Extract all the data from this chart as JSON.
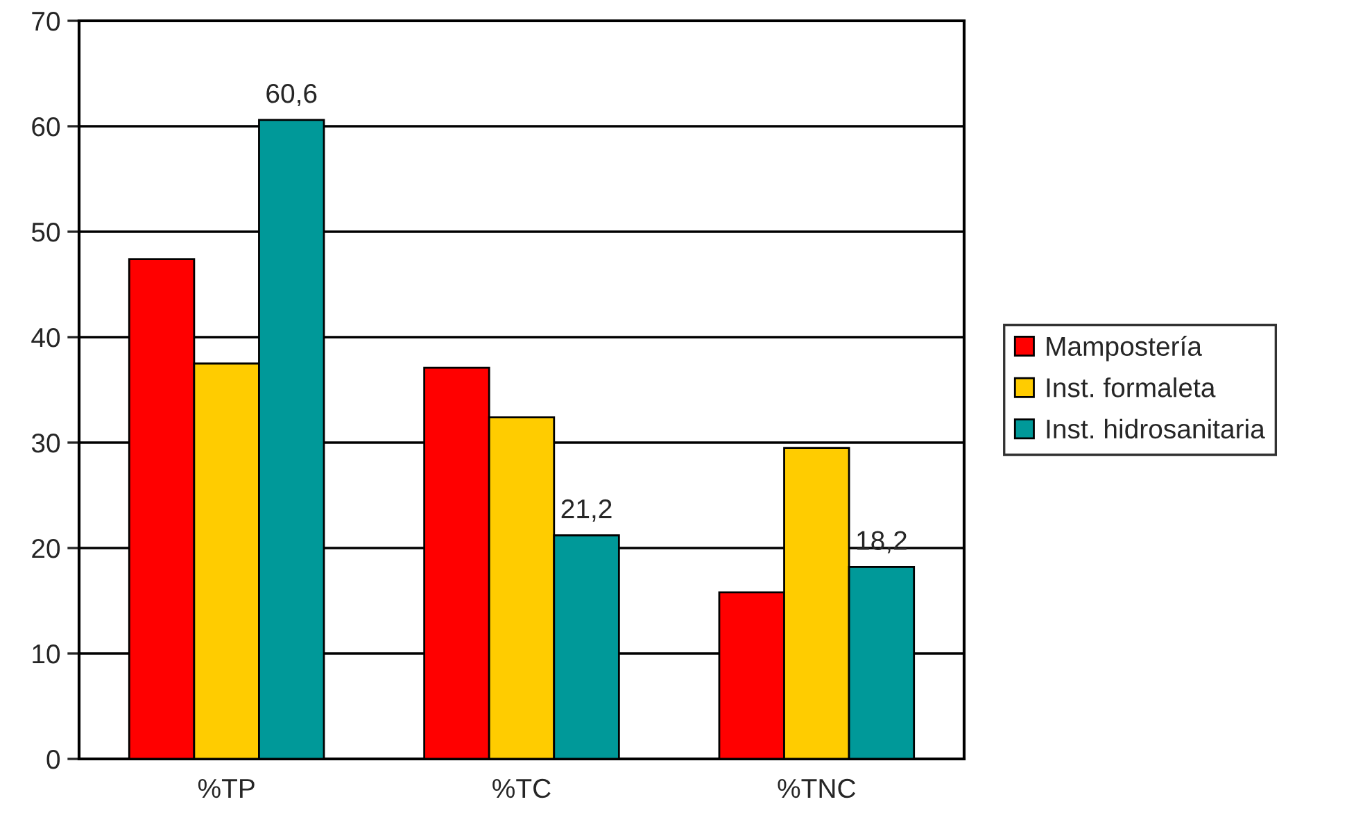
{
  "chart_data": {
    "type": "bar",
    "categories": [
      "%TP",
      "%TC",
      "%TNC"
    ],
    "series": [
      {
        "name": "Mampostería",
        "color": "#ff0000",
        "values": [
          47.4,
          37.1,
          15.8
        ]
      },
      {
        "name": "Inst. formaleta",
        "color": "#ffcc00",
        "values": [
          37.5,
          32.4,
          29.5
        ]
      },
      {
        "name": "Inst. hidrosanitaria",
        "color": "#009999",
        "values": [
          60.6,
          21.2,
          18.2
        ],
        "value_labels": [
          "60,6",
          "21,2",
          "18,2"
        ]
      }
    ],
    "ylim": [
      0,
      70
    ],
    "yticks": [
      0,
      10,
      20,
      30,
      40,
      50,
      60,
      70
    ],
    "grid": "y",
    "legend": "right"
  }
}
